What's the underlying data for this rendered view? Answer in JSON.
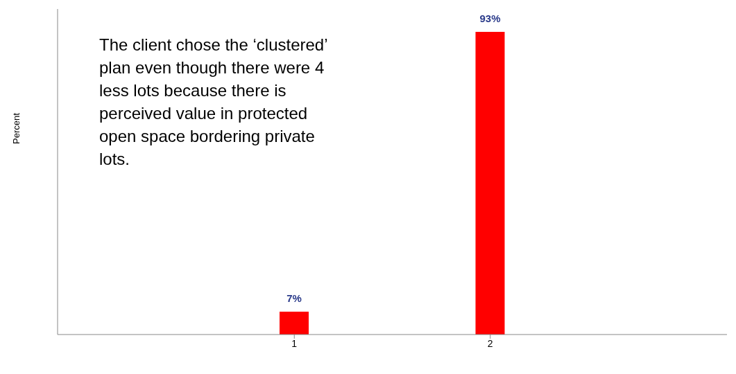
{
  "chart_data": {
    "type": "bar",
    "ylabel": "Percent",
    "categories": [
      "1",
      "2"
    ],
    "values": [
      7,
      93
    ],
    "value_labels": [
      "7%",
      "93%"
    ],
    "color": "#ff0000",
    "grid": false,
    "legend": false,
    "annotations": [
      "The client chose the ‘clustered’ plan even though there were 4 less lots because there is perceived value in protected open space bordering private lots."
    ]
  }
}
